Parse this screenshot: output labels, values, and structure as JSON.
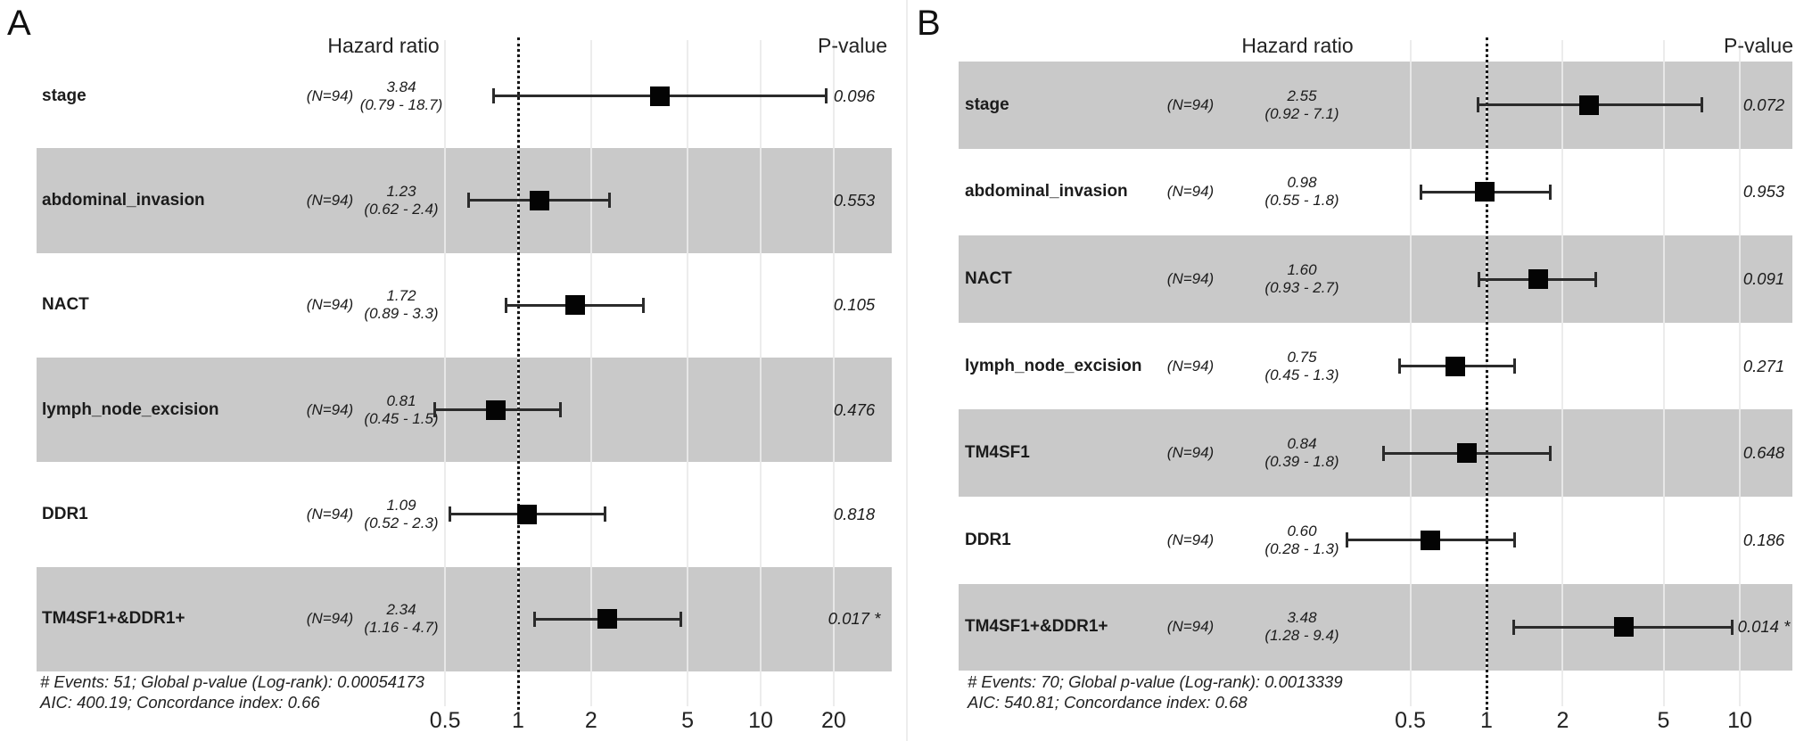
{
  "chart_data": [
    {
      "type": "scatter",
      "subtype": "forest-plot",
      "panel_label": "A",
      "hazard_ratio_header": "Hazard ratio",
      "p_value_header": "P-value",
      "scale": "log",
      "reference_line": 1,
      "axis_ticks": [
        {
          "label": "0.5",
          "value": 0.5
        },
        {
          "label": "1",
          "value": 1
        },
        {
          "label": "2",
          "value": 2
        },
        {
          "label": "5",
          "value": 5
        },
        {
          "label": "10",
          "value": 10
        },
        {
          "label": "20",
          "value": 20
        }
      ],
      "rows": [
        {
          "label": "stage",
          "n_label": "(N=94)",
          "hr": 3.84,
          "hr_text": "3.84",
          "ci_low": 0.79,
          "ci_high": 18.7,
          "ci_text": "(0.79 - 18.7)",
          "p_text": "0.096",
          "significant": false
        },
        {
          "label": "abdominal_invasion",
          "n_label": "(N=94)",
          "hr": 1.23,
          "hr_text": "1.23",
          "ci_low": 0.62,
          "ci_high": 2.4,
          "ci_text": "(0.62 - 2.4)",
          "p_text": "0.553",
          "significant": false
        },
        {
          "label": "NACT",
          "n_label": "(N=94)",
          "hr": 1.72,
          "hr_text": "1.72",
          "ci_low": 0.89,
          "ci_high": 3.3,
          "ci_text": "(0.89 - 3.3)",
          "p_text": "0.105",
          "significant": false
        },
        {
          "label": "lymph_node_excision",
          "n_label": "(N=94)",
          "hr": 0.81,
          "hr_text": "0.81",
          "ci_low": 0.45,
          "ci_high": 1.5,
          "ci_text": "(0.45 - 1.5)",
          "p_text": "0.476",
          "significant": false
        },
        {
          "label": "DDR1",
          "n_label": "(N=94)",
          "hr": 1.09,
          "hr_text": "1.09",
          "ci_low": 0.52,
          "ci_high": 2.3,
          "ci_text": "(0.52 - 2.3)",
          "p_text": "0.818",
          "significant": false
        },
        {
          "label": "TM4SF1+&DDR1+",
          "n_label": "(N=94)",
          "hr": 2.34,
          "hr_text": "2.34",
          "ci_low": 1.16,
          "ci_high": 4.7,
          "ci_text": "(1.16 - 4.7)",
          "p_text": "0.017",
          "significant": true
        }
      ],
      "footer_line1": "# Events: 51; Global p-value (Log-rank): 0.00054173",
      "footer_line2": "AIC: 400.19; Concordance index: 0.66"
    },
    {
      "type": "scatter",
      "subtype": "forest-plot",
      "panel_label": "B",
      "hazard_ratio_header": "Hazard ratio",
      "p_value_header": "P-value",
      "scale": "log",
      "reference_line": 1,
      "axis_ticks": [
        {
          "label": "0.5",
          "value": 0.5
        },
        {
          "label": "1",
          "value": 1
        },
        {
          "label": "2",
          "value": 2
        },
        {
          "label": "5",
          "value": 5
        },
        {
          "label": "10",
          "value": 10
        }
      ],
      "rows": [
        {
          "label": "stage",
          "n_label": "(N=94)",
          "hr": 2.55,
          "hr_text": "2.55",
          "ci_low": 0.92,
          "ci_high": 7.1,
          "ci_text": "(0.92 - 7.1)",
          "p_text": "0.072",
          "significant": false
        },
        {
          "label": "abdominal_invasion",
          "n_label": "(N=94)",
          "hr": 0.98,
          "hr_text": "0.98",
          "ci_low": 0.55,
          "ci_high": 1.8,
          "ci_text": "(0.55 - 1.8)",
          "p_text": "0.953",
          "significant": false
        },
        {
          "label": "NACT",
          "n_label": "(N=94)",
          "hr": 1.6,
          "hr_text": "1.60",
          "ci_low": 0.93,
          "ci_high": 2.7,
          "ci_text": "(0.93 - 2.7)",
          "p_text": "0.091",
          "significant": false
        },
        {
          "label": "lymph_node_excision",
          "n_label": "(N=94)",
          "hr": 0.75,
          "hr_text": "0.75",
          "ci_low": 0.45,
          "ci_high": 1.3,
          "ci_text": "(0.45 - 1.3)",
          "p_text": "0.271",
          "significant": false
        },
        {
          "label": "TM4SF1",
          "n_label": "(N=94)",
          "hr": 0.84,
          "hr_text": "0.84",
          "ci_low": 0.39,
          "ci_high": 1.8,
          "ci_text": "(0.39 - 1.8)",
          "p_text": "0.648",
          "significant": false
        },
        {
          "label": "DDR1",
          "n_label": "(N=94)",
          "hr": 0.6,
          "hr_text": "0.60",
          "ci_low": 0.28,
          "ci_high": 1.3,
          "ci_text": "(0.28 - 1.3)",
          "p_text": "0.186",
          "significant": false
        },
        {
          "label": "TM4SF1+&DDR1+",
          "n_label": "(N=94)",
          "hr": 3.48,
          "hr_text": "3.48",
          "ci_low": 1.28,
          "ci_high": 9.4,
          "ci_text": "(1.28 - 9.4)",
          "p_text": "0.014",
          "significant": true
        }
      ],
      "footer_line1": "# Events: 70; Global p-value (Log-rank): 0.0013339",
      "footer_line2": "AIC: 540.81; Concordance index: 0.68"
    }
  ]
}
